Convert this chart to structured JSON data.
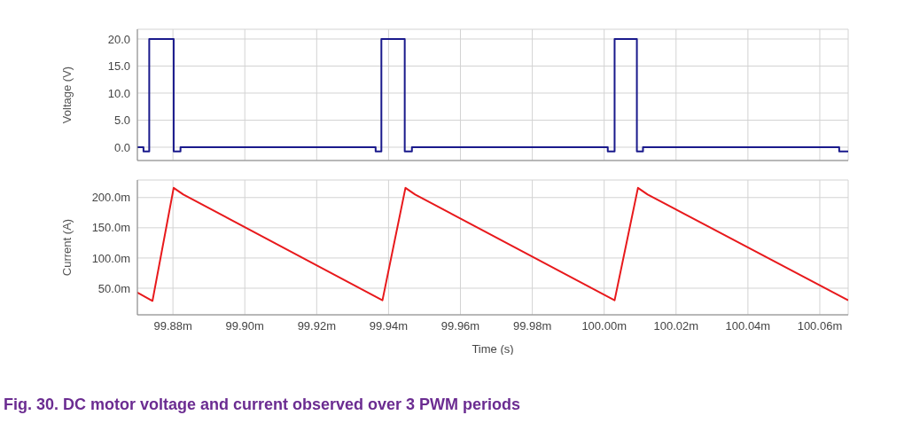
{
  "chart_data": [
    {
      "type": "line",
      "ylabel": "Voltage (V)",
      "xlim": [
        99.8701,
        100.0679
      ],
      "ylim": [
        -2.46,
        21.8
      ],
      "yticks": [
        {
          "value": 0,
          "label": "0.0"
        },
        {
          "value": 5,
          "label": "5.0"
        },
        {
          "value": 10,
          "label": "10.0"
        },
        {
          "value": 15,
          "label": "15.0"
        },
        {
          "value": 20,
          "label": "20.0"
        }
      ],
      "xticks": [
        {
          "value": 99.88,
          "label": null
        },
        {
          "value": 99.9,
          "label": null
        },
        {
          "value": 99.92,
          "label": null
        },
        {
          "value": 99.94,
          "label": null
        },
        {
          "value": 99.96,
          "label": null
        },
        {
          "value": 99.98,
          "label": null
        },
        {
          "value": 100,
          "label": null
        },
        {
          "value": 100.02,
          "label": null
        },
        {
          "value": 100.04,
          "label": null
        },
        {
          "value": 100.06,
          "label": null
        }
      ],
      "tick_labels": "y",
      "grid": true,
      "series": [
        {
          "color": "#1a1a8c",
          "x": [
            99.8701,
            99.8718,
            99.8718,
            99.8734,
            99.8734,
            99.8802,
            99.8802,
            99.8821,
            99.8821,
            99.9364,
            99.9364,
            99.938,
            99.938,
            99.9445,
            99.9445,
            99.9465,
            99.9465,
            100.001,
            100.001,
            100.0029,
            100.0029,
            100.0091,
            100.0091,
            100.0108,
            100.0108,
            100.0654,
            100.0654,
            100.0679
          ],
          "values": [
            0,
            0,
            -0.8,
            -0.8,
            20,
            20,
            -0.8,
            -0.8,
            0,
            0,
            -0.8,
            -0.8,
            20,
            20,
            -0.8,
            -0.8,
            0,
            0,
            -0.8,
            -0.8,
            20,
            20,
            -0.8,
            -0.8,
            0,
            0,
            -0.8,
            -0.8
          ]
        }
      ]
    },
    {
      "type": "line",
      "ylabel": "Current (A)",
      "xlabel": "Time (s)",
      "xlim": [
        99.8701,
        100.0679
      ],
      "ylim": [
        6,
        229
      ],
      "yticks": [
        {
          "value": 50,
          "label": "50.0m"
        },
        {
          "value": 100,
          "label": "100.0m"
        },
        {
          "value": 150,
          "label": "150.0m"
        },
        {
          "value": 200,
          "label": "200.0m"
        }
      ],
      "xticks": [
        {
          "value": 99.88,
          "label": "99.88m"
        },
        {
          "value": 99.9,
          "label": "99.90m"
        },
        {
          "value": 99.92,
          "label": "99.92m"
        },
        {
          "value": 99.94,
          "label": "99.94m"
        },
        {
          "value": 99.96,
          "label": "99.96m"
        },
        {
          "value": 99.98,
          "label": "99.98m"
        },
        {
          "value": 100,
          "label": "100.00m"
        },
        {
          "value": 100.02,
          "label": "100.02m"
        },
        {
          "value": 100.04,
          "label": "100.04m"
        },
        {
          "value": 100.06,
          "label": "100.06m"
        }
      ],
      "grid": true,
      "annotations": [
        "Fig. 30.  DC motor voltage and current observed over 3 PWM periods"
      ],
      "series": [
        {
          "color": "#e8191c",
          "x": [
            99.8701,
            99.8743,
            99.8802,
            99.8829,
            99.9383,
            99.9447,
            99.9474,
            100.0029,
            100.0094,
            100.0121,
            100.0679
          ],
          "values": [
            43,
            29,
            216,
            205,
            30,
            216,
            205,
            30,
            216,
            205,
            30
          ]
        }
      ]
    }
  ]
}
